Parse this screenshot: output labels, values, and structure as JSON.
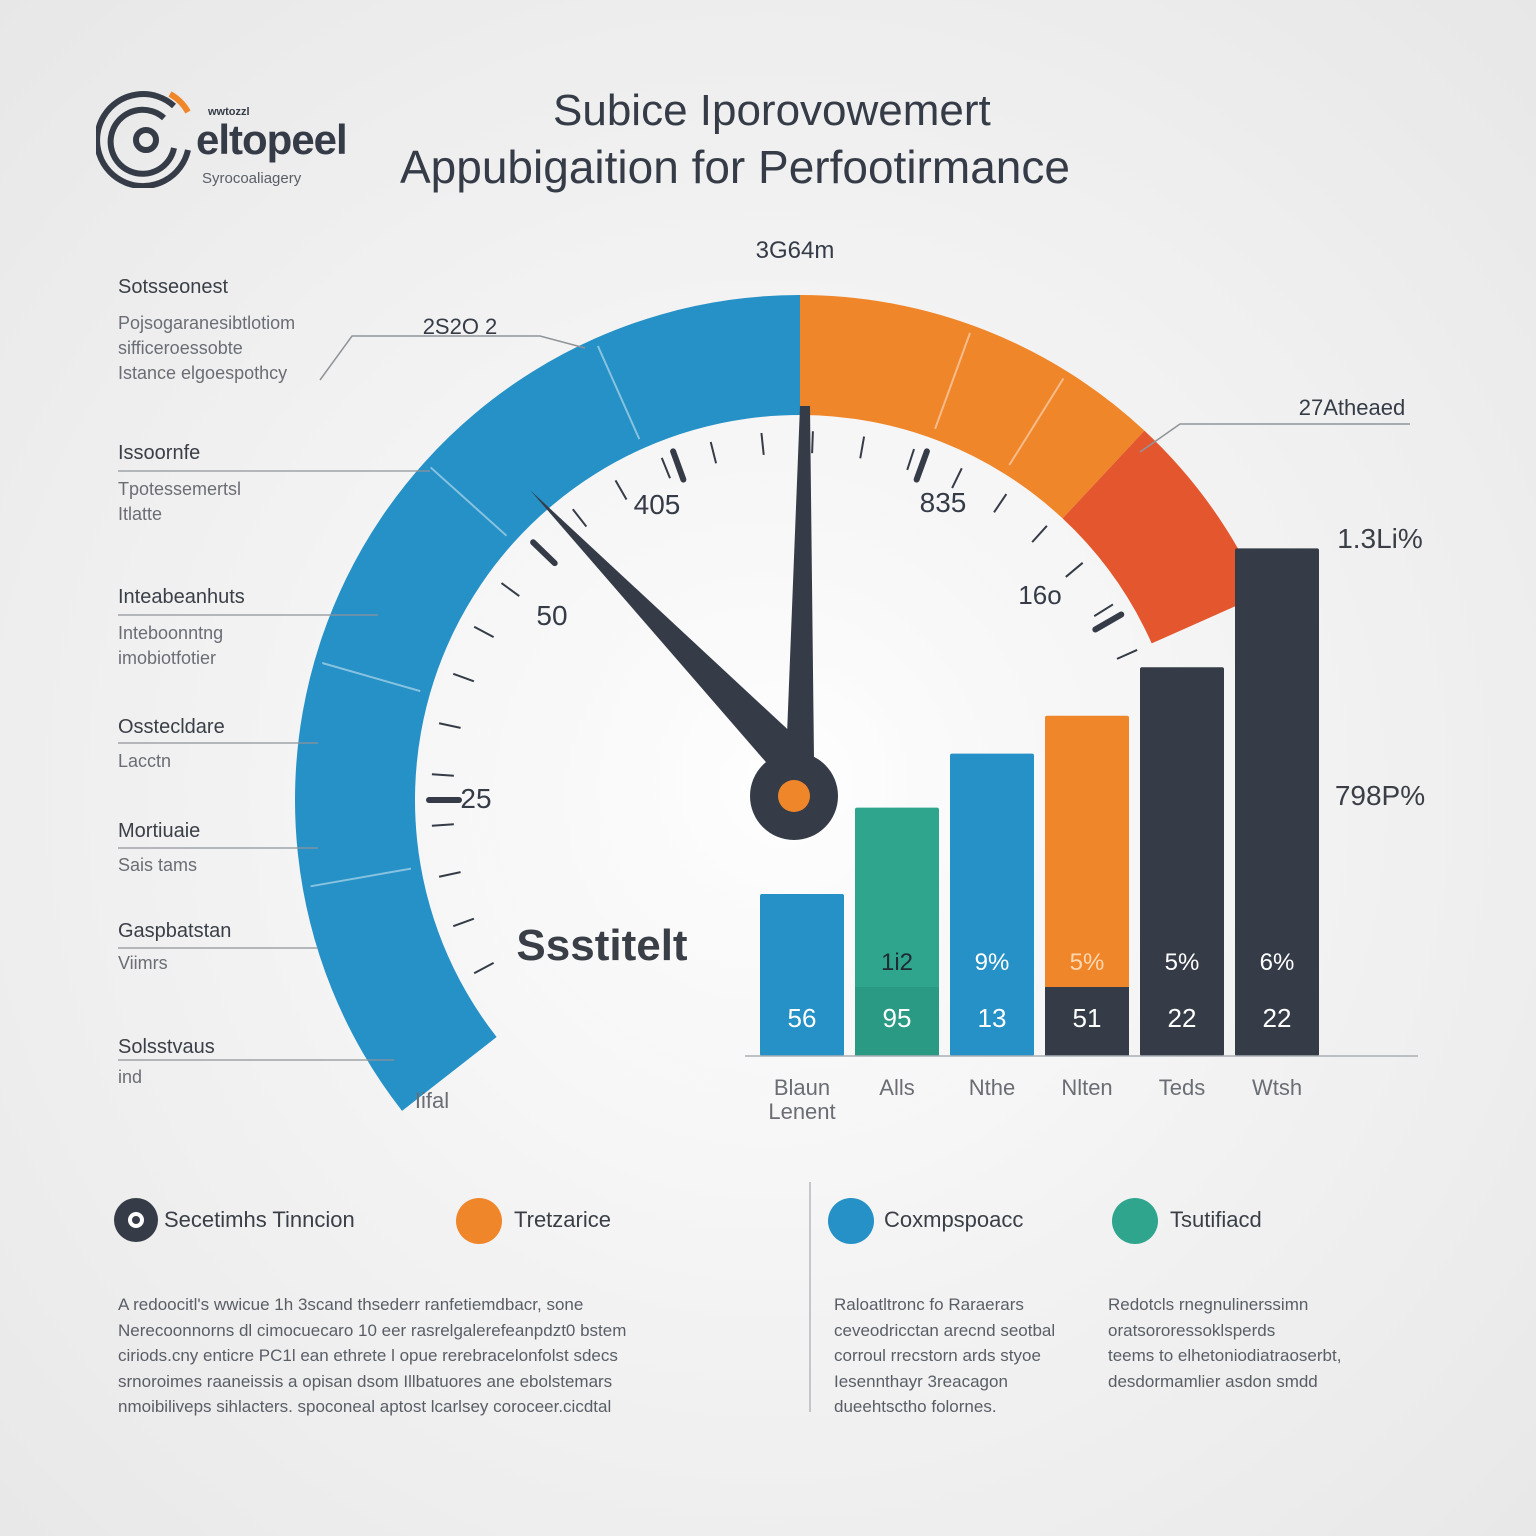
{
  "logo": {
    "brand": "eltopeel",
    "kicker": "wwtozzl",
    "tagline": "Syrocoaliagery"
  },
  "title": {
    "line1": "Subice Iporovowemert",
    "line2": "Appubigaition for Perfootirmance"
  },
  "side_labels": [
    {
      "title": "Sotsseonest",
      "sub": [
        "Pojsogaranesibtlotiom",
        "sifficeroessobte",
        "Istance elgoespothcy"
      ]
    },
    {
      "title": "Issoornfe",
      "sub": [
        "Tpotessemertsl",
        "Itlatte"
      ]
    },
    {
      "title": "Inteabeanhuts",
      "sub": [
        "Inteboonntng",
        "imobiotfotier"
      ]
    },
    {
      "title": "Osstecldare",
      "sub": [
        "Lacctn"
      ]
    },
    {
      "title": "Mortiuaie",
      "sub": [
        "Sais tams"
      ]
    },
    {
      "title": "Gaspbatstan",
      "sub": [
        "Viimrs"
      ]
    },
    {
      "title": "Solsstvaus",
      "sub": [
        "ind"
      ]
    }
  ],
  "colors": {
    "blue": "#2591c6",
    "orange": "#f0862a",
    "red_orange": "#e4572e",
    "teal": "#2fa58e",
    "dark": "#353c47",
    "grid": "#a9adb3"
  },
  "chart_data": [
    {
      "type": "gauge",
      "title": "Ssstitelt",
      "top_label": "3G64m",
      "callout_left": "2S2O 2",
      "callout_right": "27Atheaed",
      "scale_labels": [
        "25",
        "50",
        "405",
        "835",
        "16o"
      ],
      "bottom_label": "Iifal",
      "value_label": "",
      "needles": [
        "primary-needle",
        "secondary-needle"
      ]
    },
    {
      "type": "bar",
      "categories": [
        "Blaun Lenent",
        "Alls",
        "Nthe",
        "Nlten",
        "Teds",
        "Wtsh"
      ],
      "series": [
        {
          "values": [
            56,
            95,
            13,
            51,
            22,
            22
          ]
        }
      ],
      "bar_colors": [
        "#2591c6",
        "#2fa58e",
        "#2591c6",
        "#f0862a",
        "#353c47",
        "#353c47"
      ],
      "bar_heights_relative": [
        0.3,
        0.46,
        0.56,
        0.63,
        0.72,
        0.94
      ],
      "value_labels": [
        "56",
        "95",
        "13",
        "51",
        "22",
        "22"
      ],
      "percent_labels": [
        "",
        "1i2",
        "9%",
        "5%",
        "5%",
        "6%"
      ],
      "right_labels": [
        "1.3Li%",
        "798P%"
      ]
    }
  ],
  "legend": [
    {
      "label": "Secetimhs Tinncion",
      "color": "#353c47",
      "icon": "ring-dot-icon"
    },
    {
      "label": "Tretzarice",
      "color": "#f0862a",
      "icon": "orange-dot-icon"
    },
    {
      "label": "Coxmpspoacc",
      "color": "#2591c6",
      "icon": "blue-dot-icon"
    },
    {
      "label": "Tsutifiacd",
      "color": "#2fa58e",
      "icon": "teal-dot-icon"
    }
  ],
  "paragraphs": {
    "left": [
      "A redoocitl's wwicue 1h 3scand thsederr ranfetiemdbacr, sone",
      "Nerecoonnorns dl cimocuecaro 10 eer rasrelgalerefeanpdzt0 bstem",
      "ciriods.cny enticre PC1l ean ethrete l opue rerebracelonfolst sdecs",
      "srnoroimes raaneissis a opisan dsom Illbatuores ane ebolstemars",
      "nmoibiliveps sihlacters. spoconeal aptost lcarlsey coroceer.cicdtal"
    ],
    "middle": [
      "Raloatltronc fo Raraerars",
      "ceveodricctan arecnd seotbal",
      "corroul rrecstorn ards styoe",
      "Iesennthayr 3reacagon",
      "dueehtsctho folornes."
    ],
    "right": [
      "Redotcls rnegnulinerssimn",
      "oratsororessoklsperds",
      "teems to elhetoniodiatraoserbt,",
      "desdormamlier asdon smdd"
    ]
  }
}
